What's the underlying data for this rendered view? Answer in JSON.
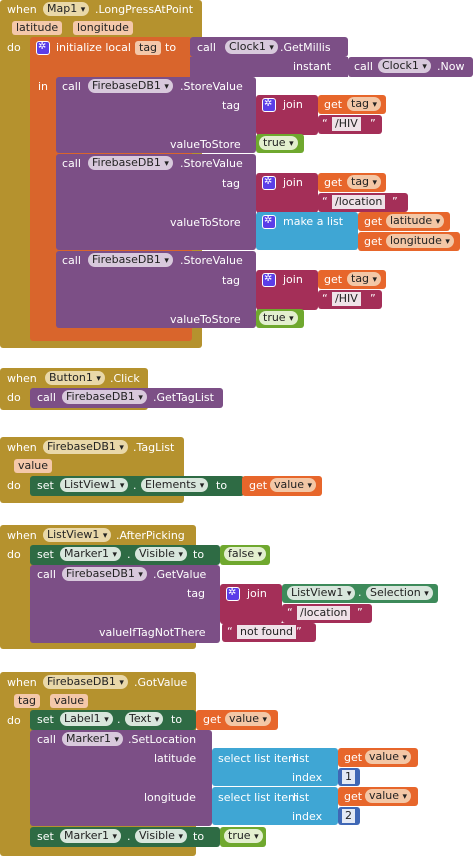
{
  "kw": {
    "when": "when",
    "do": "do",
    "in": "in",
    "call": "call",
    "set": "set",
    "get": "get",
    "to": "to",
    "join": "join",
    "initialize_local": "initialize local",
    "make_a_list": "make a list",
    "select_list_item": "select list item",
    "list": "list",
    "index": "index",
    "instant": "instant"
  },
  "arrow": "▾",
  "blocks": {
    "longpress": {
      "component": "Map1",
      "event": ".LongPressAtPoint",
      "params": [
        "latitude",
        "longitude"
      ],
      "local_var": "tag",
      "clock": "Clock1",
      "getmillis": ".GetMillis",
      "clock2": "Clock1",
      "now": ".Now",
      "db": "FirebaseDB1",
      "store": ".StoreValue",
      "tag_label": "tag",
      "value_label": "valueToStore",
      "hiv": "/HIV",
      "location": "/location",
      "true_val": "true",
      "lat": "latitude",
      "lon": "longitude",
      "tagvar": "tag"
    },
    "button": {
      "component": "Button1",
      "event": ".Click",
      "db": "FirebaseDB1",
      "method": ".GetTagList"
    },
    "taglist": {
      "component": "FirebaseDB1",
      "event": ".TagList",
      "param": "value",
      "listview": "ListView1",
      "prop": "Elements",
      "var": "value"
    },
    "afterpick": {
      "component": "ListView1",
      "event": ".AfterPicking",
      "marker": "Marker1",
      "prop": "Visible",
      "false_val": "false",
      "db": "FirebaseDB1",
      "method": ".GetValue",
      "tag_label": "tag",
      "listview": "ListView1",
      "selection": "Selection",
      "location": "/location",
      "not_there_label": "valueIfTagNotThere",
      "not_found": "not found"
    },
    "gotvalue": {
      "component": "FirebaseDB1",
      "event": ".GotValue",
      "params": [
        "tag",
        "value"
      ],
      "label": "Label1",
      "text_prop": "Text",
      "var": "value",
      "marker": "Marker1",
      "method": ".SetLocation",
      "lat_label": "latitude",
      "lon_label": "longitude",
      "idx1": "1",
      "idx2": "2",
      "visible": "Visible",
      "true_val": "true"
    }
  }
}
